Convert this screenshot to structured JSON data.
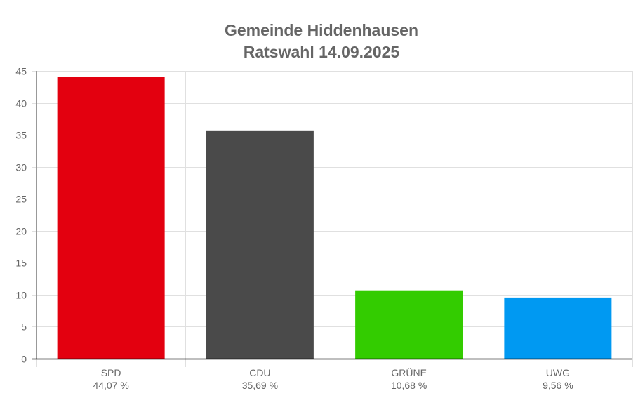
{
  "chart_data": {
    "type": "bar",
    "title": "Gemeinde Hiddenhausen",
    "subtitle": "Ratswahl 14.09.2025",
    "categories": [
      "SPD",
      "CDU",
      "GRÜNE",
      "UWG"
    ],
    "values": [
      44.07,
      35.69,
      10.68,
      9.56
    ],
    "value_labels": [
      "44,07 %",
      "35,69 %",
      "10,68 %",
      "9,56 %"
    ],
    "colors": [
      "#e3000f",
      "#4a4a4a",
      "#33cc00",
      "#0099f2"
    ],
    "ylim": [
      0,
      45
    ],
    "yticks": [
      0,
      5,
      10,
      15,
      20,
      25,
      30,
      35,
      40,
      45
    ],
    "grid": true
  }
}
